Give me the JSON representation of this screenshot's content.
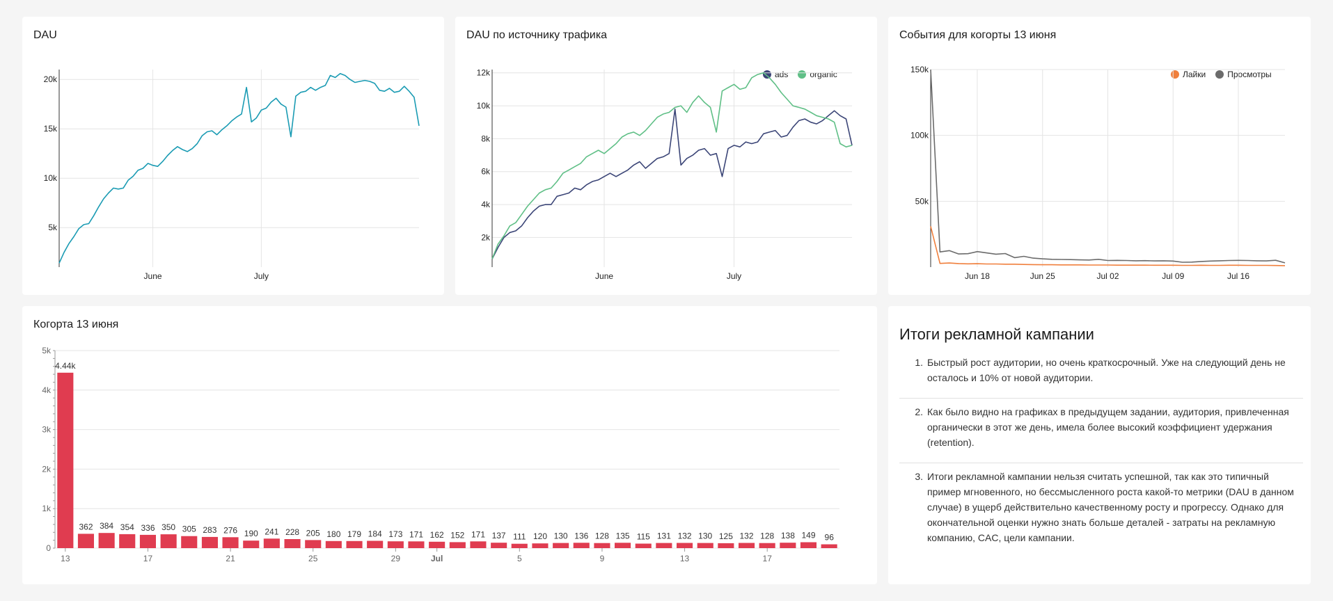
{
  "cards": {
    "dau": {
      "title": "DAU"
    },
    "dau_source": {
      "title": "DAU по источнику трафика"
    },
    "events": {
      "title": "События для когорты 13 июня"
    },
    "cohort": {
      "title": "Когорта 13 июня"
    },
    "summary": {
      "title": "Итоги рекламной кампании",
      "items": [
        {
          "num": "1.",
          "text": "Быстрый рост аудитории, но очень краткосрочный. Уже на следующий день не осталось и 10% от новой аудитории."
        },
        {
          "num": "2.",
          "text": "Как было видно на графиках в предыдущем задании, аудитория, привлеченная органически в этот же день, имела более высокий коэффициент удержания (retention)."
        },
        {
          "num": "3.",
          "text": "Итоги рекламной кампании нельзя считать успешной, так как это типичный пример мгновенного, но бессмысленного роста какой-то метрики (DAU в данном случае) в ущерб действительно качественному росту и прогрессу. Однако для окончательной оценки нужно знать больше деталей - затраты на рекламную компанию, CAC, цели кампании."
        }
      ]
    }
  },
  "chart_data": [
    {
      "id": "dau",
      "type": "line",
      "title": "DAU",
      "ylim": [
        1000,
        21000
      ],
      "yticks": [
        5000,
        10000,
        15000,
        20000
      ],
      "ytick_labels": [
        "5k",
        "10k",
        "15k",
        "20k"
      ],
      "xticks": [
        {
          "index": 19,
          "label": "June"
        },
        {
          "index": 41,
          "label": "July"
        }
      ],
      "grid": true,
      "color": "#1a9bb3",
      "values": [
        1400,
        2500,
        3400,
        4100,
        4900,
        5300,
        5400,
        6200,
        7100,
        7900,
        8500,
        9000,
        8900,
        9000,
        9800,
        10200,
        10800,
        11000,
        11500,
        11300,
        11200,
        11700,
        12300,
        12800,
        13200,
        12900,
        12700,
        13000,
        13500,
        14300,
        14700,
        14800,
        14400,
        14900,
        15300,
        15800,
        16200,
        16500,
        19200,
        15700,
        16100,
        16900,
        17100,
        17700,
        18100,
        17500,
        17200,
        14200,
        18300,
        18700,
        18800,
        19200,
        18900,
        19200,
        19400,
        20400,
        20200,
        20600,
        20400,
        20000,
        19700,
        19800,
        19900,
        19800,
        19600,
        18900,
        18800,
        19100,
        18700,
        18800,
        19300,
        18800,
        18200,
        15300
      ]
    },
    {
      "id": "dau_source",
      "type": "line",
      "title": "DAU по источнику трафика",
      "ylim": [
        200,
        12200
      ],
      "yticks": [
        2000,
        4000,
        6000,
        8000,
        10000,
        12000
      ],
      "ytick_labels": [
        "2k",
        "4k",
        "6k",
        "8k",
        "10k",
        "12k"
      ],
      "xticks": [
        {
          "index": 19,
          "label": "June"
        },
        {
          "index": 41,
          "label": "July"
        }
      ],
      "grid": true,
      "legend": "top-right",
      "series": [
        {
          "name": "ads",
          "color": "#3b4577",
          "values": [
            700,
            1400,
            2000,
            2300,
            2400,
            2700,
            3200,
            3600,
            3900,
            4000,
            4000,
            4500,
            4600,
            4700,
            5000,
            4900,
            5200,
            5400,
            5500,
            5700,
            5900,
            5700,
            5900,
            6100,
            6400,
            6600,
            6200,
            6500,
            6800,
            6900,
            7100,
            9800,
            6400,
            6800,
            7000,
            7300,
            7400,
            7000,
            7100,
            5700,
            7400,
            7600,
            7500,
            7800,
            7700,
            7800,
            8300,
            8400,
            8500,
            8100,
            8200,
            8700,
            9100,
            9200,
            9000,
            8900,
            9100,
            9400,
            9700,
            9400,
            9200,
            7600
          ]
        },
        {
          "name": "organic",
          "color": "#5fbf86",
          "values": [
            700,
            1600,
            2100,
            2700,
            2900,
            3400,
            3900,
            4300,
            4700,
            4900,
            5000,
            5400,
            5900,
            6100,
            6300,
            6500,
            6900,
            7100,
            7300,
            7100,
            7400,
            7700,
            8100,
            8300,
            8400,
            8200,
            8500,
            8900,
            9300,
            9500,
            9600,
            9900,
            10000,
            9600,
            10200,
            10600,
            10200,
            9900,
            8400,
            10900,
            11100,
            11300,
            11000,
            11100,
            11700,
            11900,
            12000,
            11700,
            11300,
            10800,
            10400,
            10000,
            9900,
            9800,
            9600,
            9400,
            9300,
            9200,
            9000,
            7700,
            7500,
            7600
          ]
        }
      ]
    },
    {
      "id": "events",
      "type": "line",
      "title": "События для когорты 13 июня",
      "ylim": [
        0,
        150000
      ],
      "yticks": [
        50000,
        100000,
        150000
      ],
      "ytick_labels": [
        "50k",
        "100k",
        "150k"
      ],
      "xticks": [
        {
          "index": 5,
          "label": "Jun 18"
        },
        {
          "index": 12,
          "label": "Jun 25"
        },
        {
          "index": 19,
          "label": "Jul 02"
        },
        {
          "index": 26,
          "label": "Jul 09"
        },
        {
          "index": 33,
          "label": "Jul 16"
        }
      ],
      "grid": true,
      "legend": "top-right",
      "series": [
        {
          "name": "Лайки",
          "color": "#f07f3c",
          "values": [
            31000,
            2800,
            3100,
            2700,
            2500,
            2600,
            2400,
            2400,
            2200,
            2200,
            2000,
            1900,
            1800,
            1800,
            1700,
            1700,
            1700,
            1600,
            1600,
            1600,
            1500,
            1500,
            1500,
            1500,
            1400,
            1400,
            1400,
            1300,
            1300,
            1400,
            1300,
            1300,
            1400,
            1400,
            1300,
            1300,
            1300,
            1200,
            1100
          ]
        },
        {
          "name": "Просмотры",
          "color": "#6b6b6b",
          "values": [
            150000,
            11500,
            12500,
            10000,
            10200,
            11800,
            10800,
            9800,
            10300,
            7200,
            8200,
            6800,
            6300,
            5900,
            5800,
            5700,
            5500,
            5400,
            5900,
            5000,
            5100,
            5000,
            4800,
            4900,
            4700,
            4800,
            4600,
            3700,
            3800,
            4300,
            4600,
            4800,
            5000,
            5100,
            5000,
            4800,
            4700,
            5200,
            3200
          ]
        }
      ]
    },
    {
      "id": "cohort",
      "type": "bar",
      "title": "Когорта 13 июня",
      "ylim": [
        0,
        5000
      ],
      "yticks": [
        0,
        1000,
        2000,
        3000,
        4000,
        5000
      ],
      "ytick_labels": [
        "0",
        "1k",
        "2k",
        "3k",
        "4k",
        "5k"
      ],
      "color": "#e03c50",
      "values": [
        4440,
        362,
        384,
        354,
        336,
        350,
        305,
        283,
        276,
        190,
        241,
        228,
        205,
        180,
        179,
        184,
        173,
        171,
        162,
        152,
        171,
        137,
        111,
        120,
        130,
        136,
        128,
        135,
        115,
        131,
        132,
        130,
        125,
        132,
        128,
        138,
        149,
        96
      ],
      "value_labels": [
        "4.44k",
        "362",
        "384",
        "354",
        "336",
        "350",
        "305",
        "283",
        "276",
        "190",
        "241",
        "228",
        "205",
        "180",
        "179",
        "184",
        "173",
        "171",
        "162",
        "152",
        "171",
        "137",
        "111",
        "120",
        "130",
        "136",
        "128",
        "135",
        "115",
        "131",
        "132",
        "130",
        "125",
        "132",
        "128",
        "138",
        "149",
        "96"
      ],
      "xticks": [
        {
          "index": 0,
          "label": "13"
        },
        {
          "index": 4,
          "label": "17"
        },
        {
          "index": 8,
          "label": "21"
        },
        {
          "index": 12,
          "label": "25"
        },
        {
          "index": 16,
          "label": "29"
        },
        {
          "index": 18,
          "label": "Jul",
          "bold": true
        },
        {
          "index": 22,
          "label": "5"
        },
        {
          "index": 26,
          "label": "9"
        },
        {
          "index": 30,
          "label": "13"
        },
        {
          "index": 34,
          "label": "17"
        }
      ]
    }
  ]
}
